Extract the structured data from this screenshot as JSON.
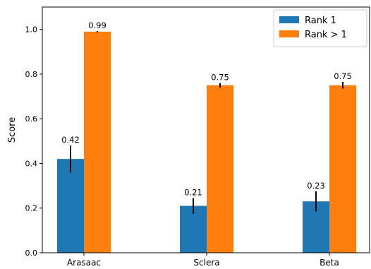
{
  "chart_data": {
    "type": "bar",
    "categories": [
      "Arasaac",
      "Sclera",
      "Beta"
    ],
    "series": [
      {
        "name": "Rank 1",
        "values": [
          0.42,
          0.21,
          0.23
        ],
        "errors": [
          0.06,
          0.035,
          0.045
        ],
        "labels": [
          "0.42",
          "0.21",
          "0.23"
        ],
        "color": "#1f77b4"
      },
      {
        "name": "Rank > 1",
        "values": [
          0.99,
          0.75,
          0.75
        ],
        "errors": [
          0.003,
          0.01,
          0.015
        ],
        "labels": [
          "0.99",
          "0.75",
          "0.75"
        ],
        "color": "#ff7f0e"
      }
    ],
    "title": "",
    "xlabel": "",
    "ylabel": "Score",
    "ylim": [
      0.0,
      1.1
    ],
    "yticks": [
      0.0,
      0.2,
      0.4,
      0.6,
      0.8,
      1.0
    ],
    "ytick_labels": [
      "0.0",
      "0.2",
      "0.4",
      "0.6",
      "0.8",
      "1.0"
    ],
    "grid": false,
    "legend_position": "top-right"
  }
}
